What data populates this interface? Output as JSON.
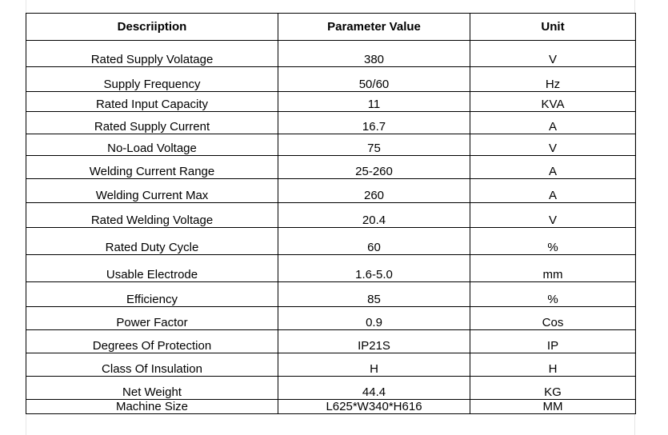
{
  "table": {
    "headers": [
      "Descriiption",
      "Parameter Value",
      "Unit"
    ],
    "rows": [
      [
        "Rated Supply Volatage",
        "380",
        "V"
      ],
      [
        "Supply Frequency",
        "50/60",
        "Hz"
      ],
      [
        "Rated Input Capacity",
        "11",
        "KVA"
      ],
      [
        "Rated Supply Current",
        "16.7",
        "A"
      ],
      [
        "No-Load Voltage",
        "75",
        "V"
      ],
      [
        "Welding Current Range",
        "25-260",
        "A"
      ],
      [
        "Welding Current Max",
        "260",
        "A"
      ],
      [
        "Rated Welding Voltage",
        "20.4",
        "V"
      ],
      [
        "Rated Duty Cycle",
        "60",
        "%"
      ],
      [
        "Usable Electrode",
        "1.6-5.0",
        "mm"
      ],
      [
        "Efficiency",
        "85",
        "%"
      ],
      [
        "Power Factor",
        "0.9",
        "Cos"
      ],
      [
        "Degrees Of Protection",
        "IP21S",
        "IP"
      ],
      [
        "Class Of Insulation",
        "H",
        "H"
      ],
      [
        "Net Weight",
        "44.4",
        "KG"
      ],
      [
        "Machine Size",
        "L625*W340*H616",
        "MM"
      ]
    ]
  }
}
